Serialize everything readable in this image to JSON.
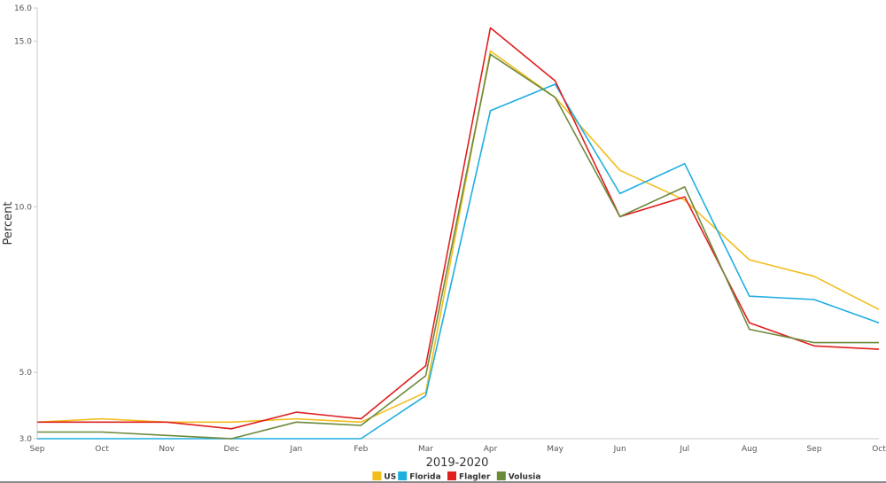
{
  "chart_data": {
    "type": "line",
    "title": "",
    "xlabel": "2019-2020",
    "ylabel": "Percent",
    "categories": [
      "Sep",
      "Oct",
      "Nov",
      "Dec",
      "Jan",
      "Feb",
      "Mar",
      "Apr",
      "May",
      "Jun",
      "Jul",
      "Aug",
      "Sep",
      "Oct"
    ],
    "ylim": [
      3.0,
      16.0
    ],
    "yticks": [
      {
        "value": 3,
        "label": "3.0"
      },
      {
        "value": 5,
        "label": "5.0"
      },
      {
        "value": 10,
        "label": "10.0"
      },
      {
        "value": 15,
        "label": "15.0"
      },
      {
        "value": 16,
        "label": "16.0"
      }
    ],
    "legend_position": "bottom-center",
    "grid": false,
    "series": [
      {
        "name": "US",
        "color": "#f2bd1d",
        "values": [
          3.5,
          3.6,
          3.5,
          3.5,
          3.6,
          3.5,
          4.4,
          14.7,
          13.3,
          11.1,
          10.2,
          8.4,
          7.9,
          6.9
        ]
      },
      {
        "name": "Florida",
        "color": "#1eaee0",
        "values": [
          3.0,
          3.0,
          3.0,
          3.0,
          3.0,
          3.0,
          4.3,
          12.9,
          13.7,
          10.4,
          11.3,
          7.3,
          7.2,
          6.5
        ]
      },
      {
        "name": "Flagler",
        "color": "#e01f1f",
        "values": [
          3.5,
          3.5,
          3.5,
          3.3,
          3.8,
          3.6,
          5.2,
          15.4,
          13.8,
          9.7,
          10.3,
          6.5,
          5.8,
          5.7
        ]
      },
      {
        "name": "Volusia",
        "color": "#6b8a3a",
        "values": [
          3.2,
          3.2,
          3.1,
          3.0,
          3.5,
          3.4,
          4.9,
          14.6,
          13.3,
          9.7,
          10.6,
          6.3,
          5.9,
          5.9
        ]
      }
    ]
  }
}
